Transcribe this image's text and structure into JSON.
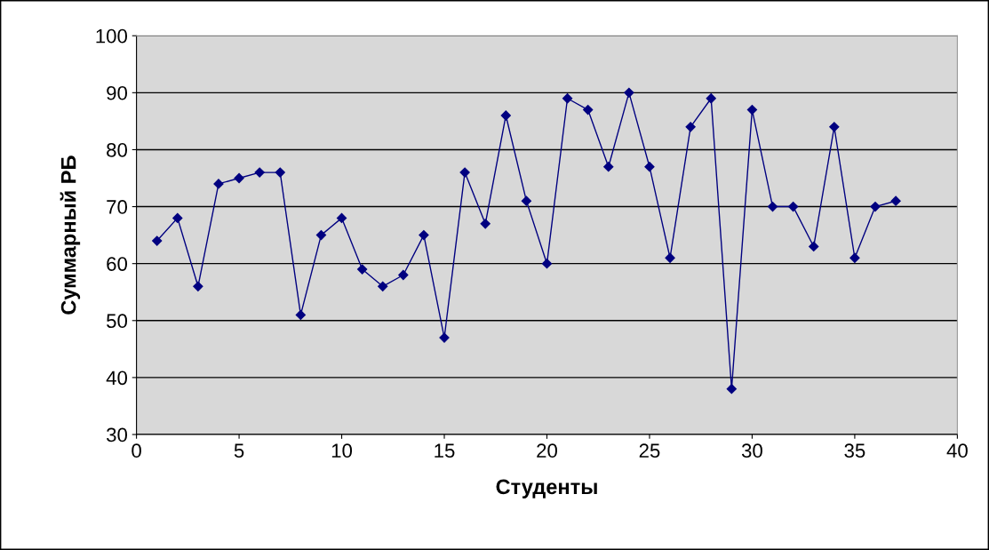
{
  "chart_data": {
    "type": "line",
    "xlabel": "Студенты",
    "ylabel": "Суммарный РБ",
    "x": [
      1,
      2,
      3,
      4,
      5,
      6,
      7,
      8,
      9,
      10,
      11,
      12,
      13,
      14,
      15,
      16,
      17,
      18,
      19,
      20,
      21,
      22,
      23,
      24,
      25,
      26,
      27,
      28,
      29,
      30,
      31,
      32,
      33,
      34,
      35,
      36,
      37
    ],
    "series": [
      {
        "color": "#000080",
        "values": [
          64,
          68,
          56,
          74,
          75,
          76,
          76,
          51,
          65,
          68,
          59,
          56,
          58,
          65,
          47,
          76,
          67,
          86,
          71,
          60,
          89,
          87,
          77,
          90,
          77,
          61,
          84,
          89,
          38,
          87,
          70,
          70,
          63,
          84,
          61,
          70,
          71
        ]
      }
    ],
    "xlim": [
      0,
      40
    ],
    "xticks": [
      0,
      5,
      10,
      15,
      20,
      25,
      30,
      35,
      40
    ],
    "ylim": [
      30,
      100
    ],
    "yticks": [
      30,
      40,
      50,
      60,
      70,
      80,
      90,
      100
    ],
    "grid": "y",
    "marker": "diamond",
    "line_style": "solid",
    "legend": false
  }
}
